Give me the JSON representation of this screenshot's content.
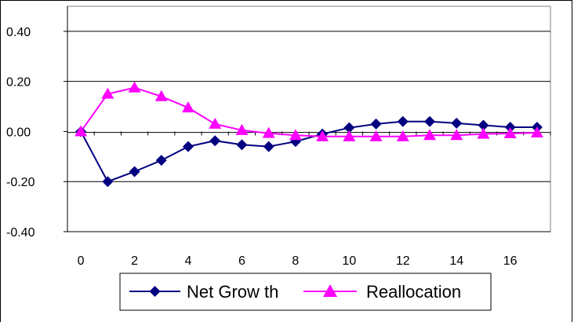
{
  "chart_data": {
    "type": "line",
    "x": [
      0,
      1,
      2,
      3,
      4,
      5,
      6,
      7,
      8,
      9,
      10,
      11,
      12,
      13,
      14,
      15,
      16,
      17
    ],
    "xticks": [
      0,
      2,
      4,
      6,
      8,
      10,
      12,
      14,
      16
    ],
    "xtick_labels": [
      "0",
      "2",
      "4",
      "6",
      "8",
      "10",
      "12",
      "14",
      "16"
    ],
    "yticks": [
      -0.4,
      -0.2,
      0.0,
      0.2,
      0.4
    ],
    "ytick_labels": [
      "-0.40",
      "-0.20",
      "0.00",
      "0.20",
      "0.40"
    ],
    "xlim": [
      -0.5,
      17.5
    ],
    "ylim": [
      -0.4,
      0.5
    ],
    "grid": true,
    "legend_position": "bottom",
    "series": [
      {
        "name": "Net Grow th",
        "color": "#000080",
        "marker": "diamond",
        "values": [
          0.0,
          -0.2,
          -0.16,
          -0.115,
          -0.06,
          -0.037,
          -0.053,
          -0.06,
          -0.04,
          -0.01,
          0.015,
          0.03,
          0.04,
          0.04,
          0.033,
          0.025,
          0.017,
          0.017
        ]
      },
      {
        "name": "Reallocation",
        "color": "#FF00FF",
        "marker": "triangle",
        "values": [
          0.0,
          0.15,
          0.175,
          0.14,
          0.095,
          0.03,
          0.005,
          -0.007,
          -0.015,
          -0.02,
          -0.02,
          -0.02,
          -0.02,
          -0.015,
          -0.015,
          -0.01,
          -0.008,
          -0.005
        ]
      }
    ]
  }
}
